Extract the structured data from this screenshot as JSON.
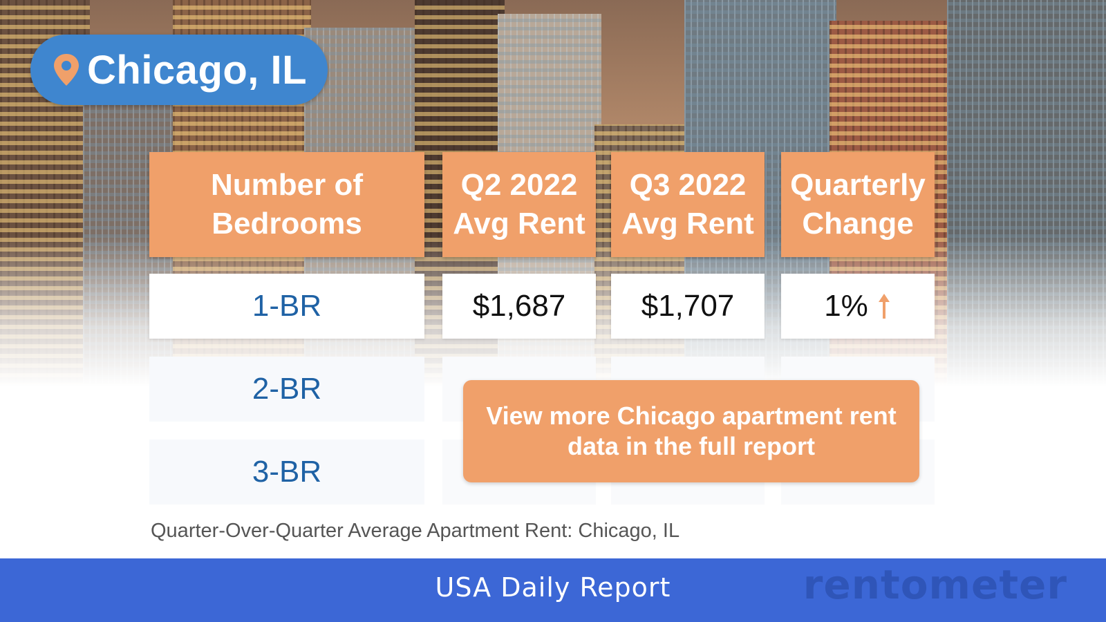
{
  "location": {
    "icon": "map-pin-icon",
    "label": "Chicago, IL"
  },
  "table": {
    "headers": [
      "Number of Bedrooms",
      "Q2 2022 Avg Rent",
      "Q3 2022 Avg Rent",
      "Quarterly Change"
    ],
    "rows": [
      {
        "bedrooms": "1-BR",
        "q2": "$1,687",
        "q3": "$1,707",
        "change": "1%",
        "trend_icon": "arrow-up-icon"
      },
      {
        "bedrooms": "2-BR"
      },
      {
        "bedrooms": "3-BR"
      }
    ]
  },
  "cta": {
    "label": "View more Chicago apartment rent data in the full report"
  },
  "caption": "Quarter-Over-Quarter Average Apartment Rent: Chicago, IL",
  "footer": {
    "title": "USA Daily Report",
    "brand": "rentometer"
  },
  "colors": {
    "accent_orange": "#f0a06a",
    "pill_blue": "#3f86cf",
    "footer_blue": "#3c67d6",
    "label_blue": "#1f62a5"
  }
}
